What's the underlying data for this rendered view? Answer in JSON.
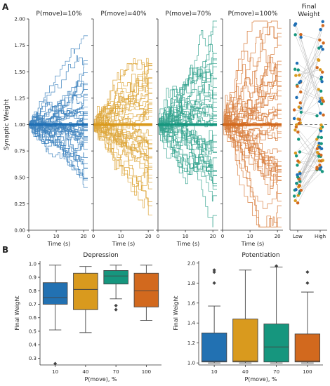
{
  "panel_a": {
    "label": "A",
    "ylabel": "Synaptic Weight",
    "xlabel": "Time (s)",
    "ylim": [
      0,
      2.0
    ],
    "yticks": [
      "0.00",
      "0.25",
      "0.50",
      "0.75",
      "1.00",
      "1.25",
      "1.50",
      "1.75",
      "2.00"
    ],
    "xlim": [
      0,
      22
    ],
    "xticks": [
      "0",
      "10",
      "20"
    ],
    "subplots": [
      {
        "title": "P(move)=10%",
        "color": "#1f6fb4",
        "seed": 3,
        "p": 0.1
      },
      {
        "title": "P(move)=40%",
        "color": "#d99a1e",
        "seed": 11,
        "p": 0.4
      },
      {
        "title": "P(move)=70%",
        "color": "#16967e",
        "seed": 23,
        "p": 0.7
      },
      {
        "title": "P(move)=100%",
        "color": "#d2691e",
        "seed": 37,
        "p": 1.0
      }
    ],
    "final_weight": {
      "title_line1": "Final",
      "title_line2": "Weight",
      "xticks": [
        "Low",
        "High"
      ],
      "reference_line": 1.0
    }
  },
  "panel_b": {
    "label": "B",
    "xlabel": "P(move), %",
    "ylabel": "Final Weight",
    "colors": [
      "#2271b2",
      "#d99a1e",
      "#16967e",
      "#d2691e"
    ]
  },
  "chart_data": [
    {
      "type": "line",
      "title": "P(move)=10%",
      "xlabel": "Time (s)",
      "ylabel": "Synaptic Weight",
      "xlim": [
        0,
        22
      ],
      "ylim": [
        0,
        2.0
      ],
      "note_series_count": 40
    },
    {
      "type": "line",
      "title": "P(move)=40%",
      "xlabel": "Time (s)",
      "xlim": [
        0,
        22
      ],
      "ylim": [
        0,
        2.0
      ]
    },
    {
      "type": "line",
      "title": "P(move)=70%",
      "xlabel": "Time (s)",
      "xlim": [
        0,
        22
      ],
      "ylim": [
        0,
        2.0
      ]
    },
    {
      "type": "line",
      "title": "P(move)=100%",
      "xlabel": "Time (s)",
      "xlim": [
        0,
        22
      ],
      "ylim": [
        0,
        2.0
      ]
    },
    {
      "type": "scatter",
      "title": "Final Weight",
      "categories": [
        "Low",
        "High"
      ],
      "ylim": [
        0,
        2.0
      ]
    },
    {
      "type": "box",
      "title": "Depression",
      "xlabel": "P(move), %",
      "ylabel": "Final Weight",
      "categories": [
        "10",
        "40",
        "70",
        "100"
      ],
      "ylim": [
        0.25,
        1.02
      ],
      "yticks": [
        "0.3",
        "0.4",
        "0.5",
        "0.6",
        "0.7",
        "0.8",
        "0.9",
        "1.0"
      ],
      "boxes": [
        {
          "whislo": 0.51,
          "q1": 0.7,
          "med": 0.75,
          "q3": 0.86,
          "whishi": 0.99,
          "fliers": [
            0.26
          ]
        },
        {
          "whislo": 0.49,
          "q1": 0.66,
          "med": 0.81,
          "q3": 0.93,
          "whishi": 0.98,
          "fliers": []
        },
        {
          "whislo": 0.74,
          "q1": 0.85,
          "med": 0.91,
          "q3": 0.95,
          "whishi": 0.99,
          "fliers": [
            0.69,
            0.66
          ]
        },
        {
          "whislo": 0.58,
          "q1": 0.68,
          "med": 0.8,
          "q3": 0.93,
          "whishi": 0.99,
          "fliers": []
        }
      ]
    },
    {
      "type": "box",
      "title": "Potentiation",
      "xlabel": "P(move), %",
      "ylabel": "Final Weight",
      "categories": [
        "10",
        "40",
        "70",
        "100"
      ],
      "ylim": [
        0.98,
        2.02
      ],
      "yticks": [
        "1.0",
        "1.2",
        "1.4",
        "1.6",
        "1.8",
        "2.0"
      ],
      "boxes": [
        {
          "whislo": 1.0,
          "q1": 1.01,
          "med": 1.02,
          "q3": 1.3,
          "whishi": 1.57,
          "fliers": [
            1.8,
            1.91,
            1.93
          ]
        },
        {
          "whislo": 1.0,
          "q1": 1.01,
          "med": 1.02,
          "q3": 1.44,
          "whishi": 1.93,
          "fliers": []
        },
        {
          "whislo": 1.0,
          "q1": 1.01,
          "med": 1.16,
          "q3": 1.39,
          "whishi": 1.96,
          "fliers": [
            1.97
          ]
        },
        {
          "whislo": 1.0,
          "q1": 1.01,
          "med": 1.02,
          "q3": 1.29,
          "whishi": 1.71,
          "fliers": [
            1.8,
            1.91
          ]
        }
      ]
    }
  ]
}
